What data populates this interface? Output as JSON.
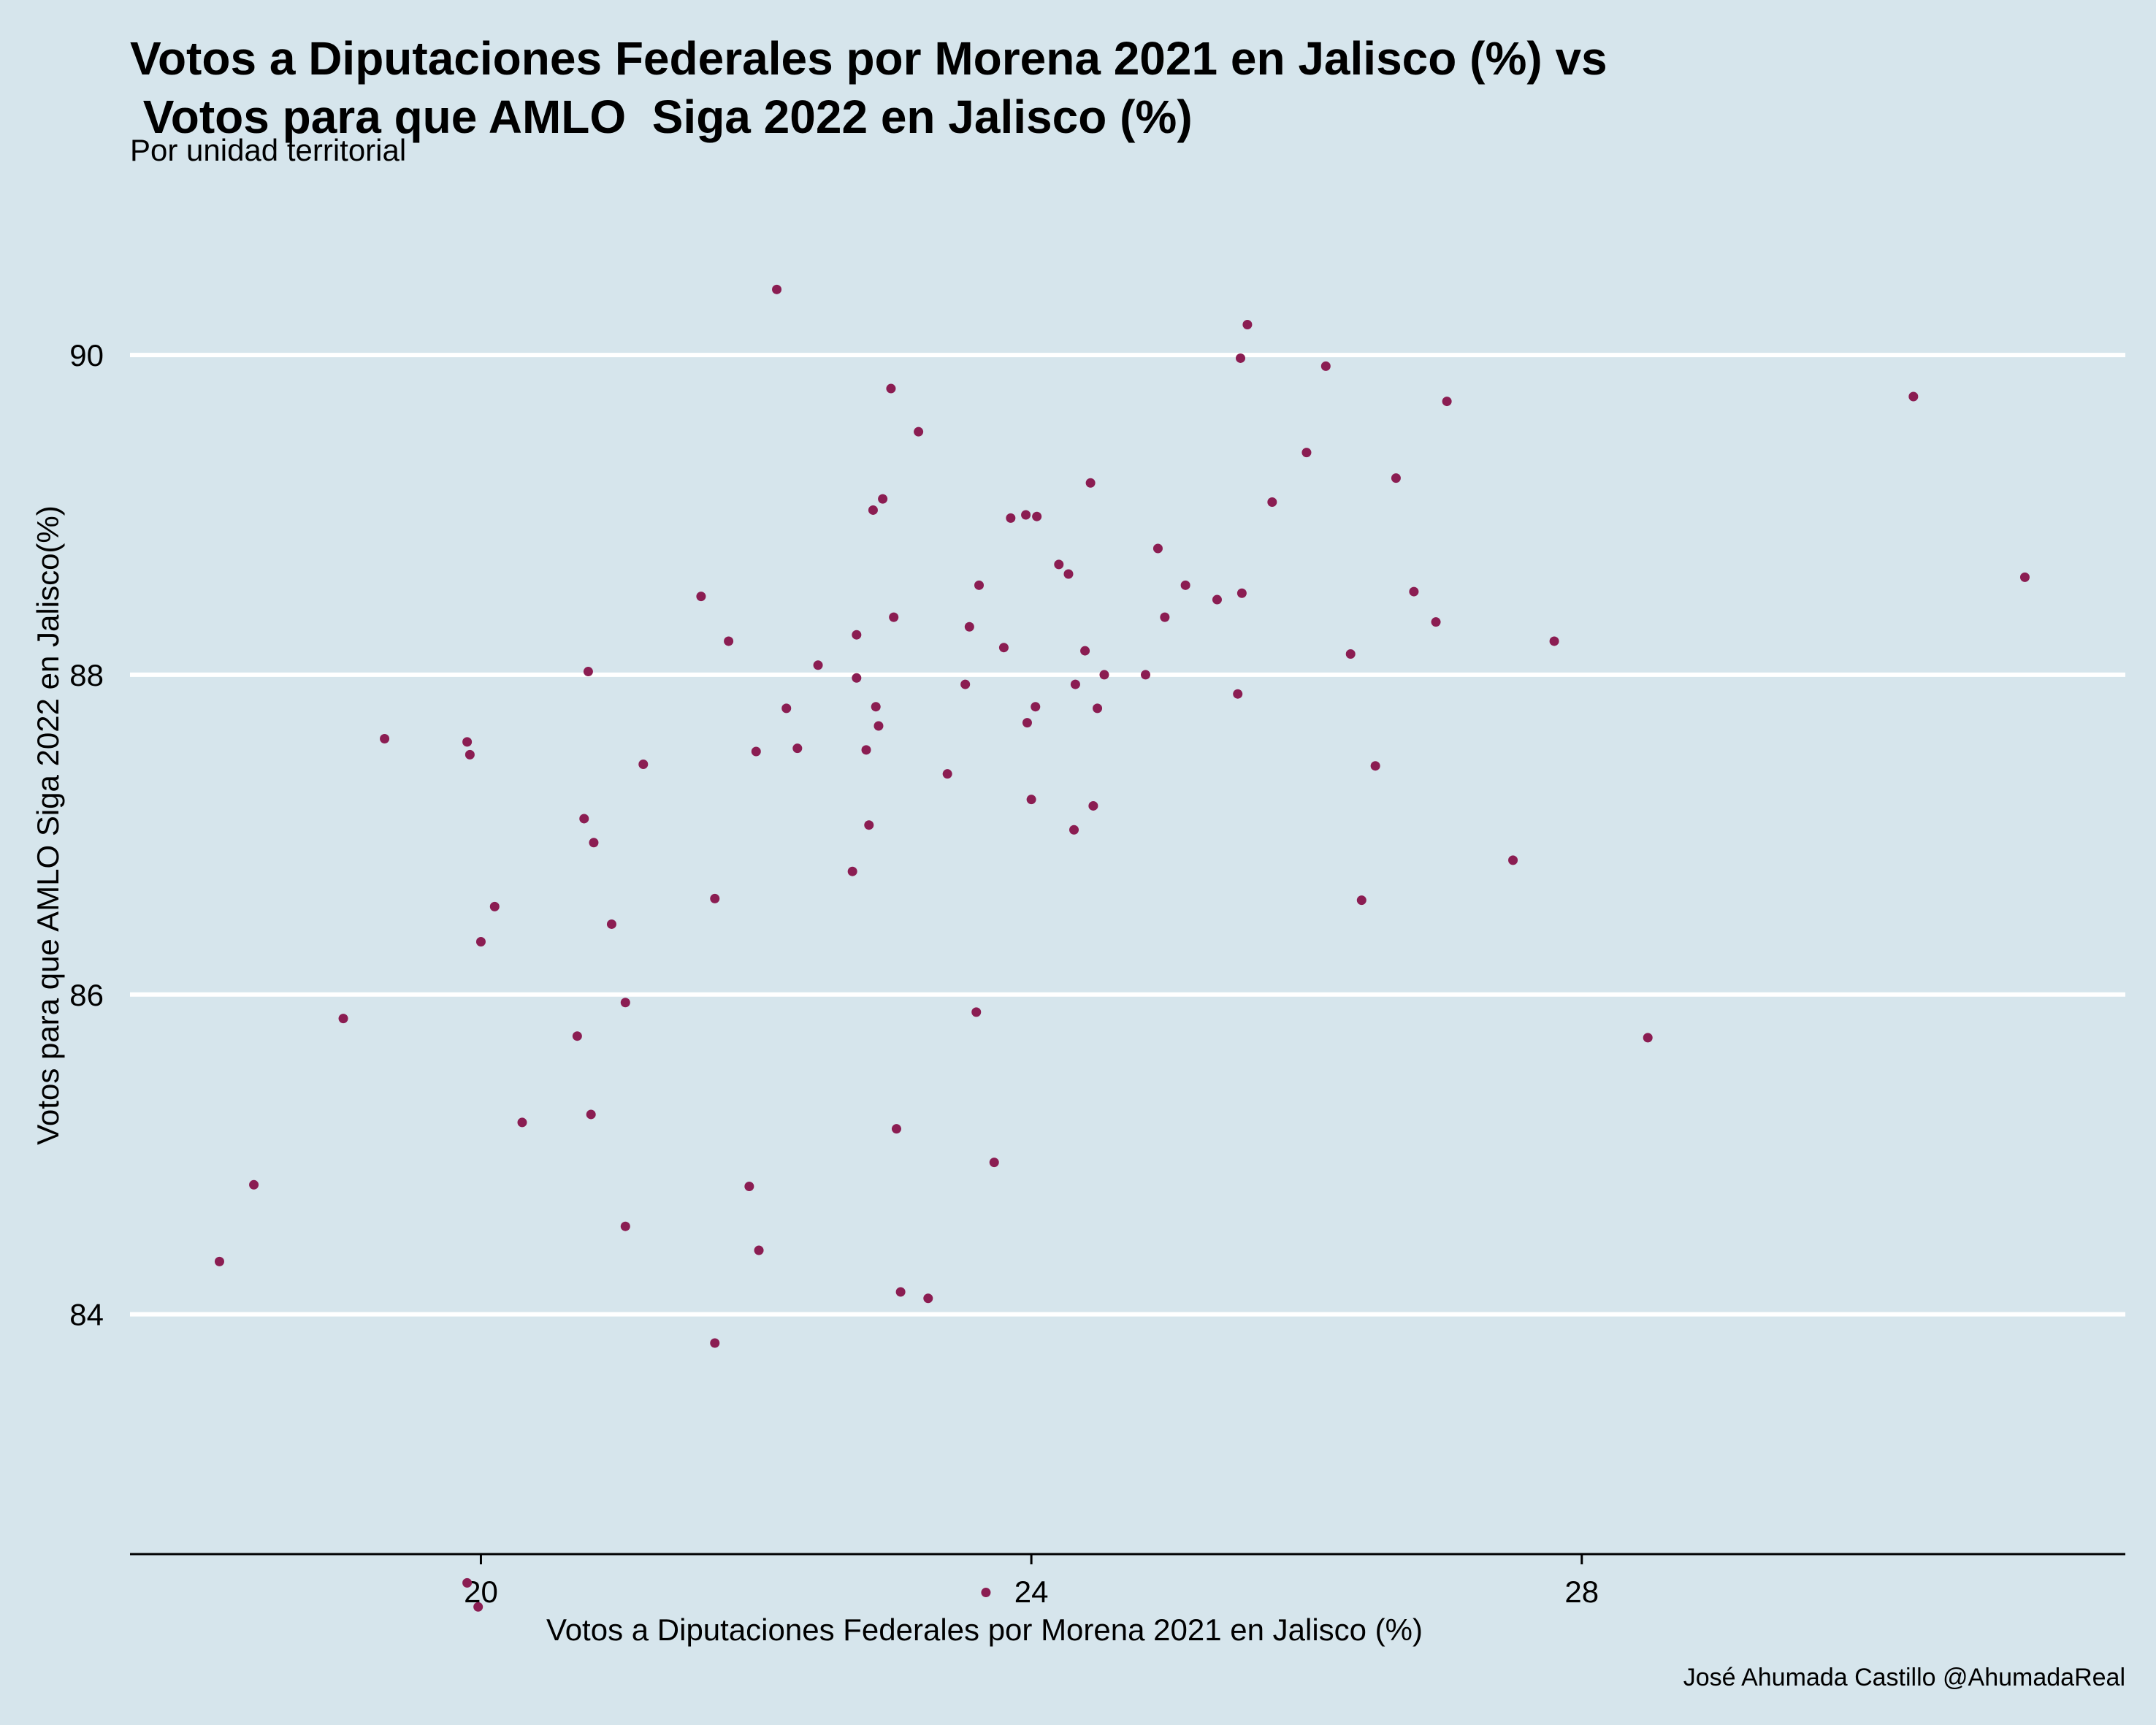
{
  "chart_data": {
    "type": "scatter",
    "title": "Votos a Diputaciones Federales por Morena 2021 en Jalisco (%) vs\n Votos para que AMLO  Siga 2022 en Jalisco (%)",
    "subtitle": "Por unidad territorial",
    "xlabel": "Votos a Diputaciones Federales por Morena 2021 en Jalisco (%)",
    "ylabel": "Votos para que AMLO Siga 2022 en Jalisco(%)",
    "caption": "José Ahumada Castillo @AhumadaReal",
    "xlim": [
      17.45,
      31.95
    ],
    "ylim": [
      82.5,
      90.85
    ],
    "xticks": [
      20,
      24,
      28
    ],
    "yticks": [
      84,
      86,
      88,
      90
    ],
    "grid": "horizontal major",
    "point_color": "#8b1d52",
    "points": [
      [
        18.1,
        84.33
      ],
      [
        18.35,
        84.81
      ],
      [
        19.0,
        85.85
      ],
      [
        19.3,
        87.6
      ],
      [
        19.9,
        87.58
      ],
      [
        19.92,
        87.5
      ],
      [
        19.9,
        82.32
      ],
      [
        19.98,
        82.17
      ],
      [
        20.0,
        86.33
      ],
      [
        20.1,
        86.55
      ],
      [
        20.3,
        85.2
      ],
      [
        20.7,
        85.74
      ],
      [
        20.75,
        87.1
      ],
      [
        20.78,
        88.02
      ],
      [
        20.8,
        85.25
      ],
      [
        20.82,
        86.95
      ],
      [
        20.95,
        86.44
      ],
      [
        21.05,
        85.95
      ],
      [
        21.05,
        84.55
      ],
      [
        21.18,
        87.44
      ],
      [
        21.6,
        88.49
      ],
      [
        21.7,
        86.6
      ],
      [
        21.7,
        83.82
      ],
      [
        21.8,
        88.21
      ],
      [
        21.95,
        84.8
      ],
      [
        22.0,
        87.52
      ],
      [
        22.02,
        84.4
      ],
      [
        22.15,
        90.41
      ],
      [
        22.22,
        87.79
      ],
      [
        22.3,
        87.54
      ],
      [
        22.45,
        88.06
      ],
      [
        22.7,
        86.77
      ],
      [
        22.73,
        87.98
      ],
      [
        22.73,
        88.25
      ],
      [
        22.8,
        87.53
      ],
      [
        22.82,
        87.06
      ],
      [
        22.85,
        89.03
      ],
      [
        22.87,
        87.8
      ],
      [
        22.89,
        87.68
      ],
      [
        22.92,
        89.1
      ],
      [
        22.98,
        89.79
      ],
      [
        23.0,
        88.36
      ],
      [
        23.02,
        85.16
      ],
      [
        23.05,
        84.14
      ],
      [
        23.18,
        89.52
      ],
      [
        23.25,
        84.1
      ],
      [
        23.39,
        87.38
      ],
      [
        23.52,
        87.94
      ],
      [
        23.55,
        88.3
      ],
      [
        23.6,
        85.89
      ],
      [
        23.62,
        88.56
      ],
      [
        23.67,
        82.26
      ],
      [
        23.73,
        84.95
      ],
      [
        23.8,
        88.17
      ],
      [
        23.85,
        88.98
      ],
      [
        23.96,
        89.0
      ],
      [
        23.97,
        87.7
      ],
      [
        24.0,
        87.22
      ],
      [
        24.03,
        87.8
      ],
      [
        24.04,
        88.99
      ],
      [
        24.2,
        88.69
      ],
      [
        24.27,
        88.63
      ],
      [
        24.31,
        87.03
      ],
      [
        24.32,
        87.94
      ],
      [
        24.39,
        88.15
      ],
      [
        24.43,
        89.2
      ],
      [
        24.45,
        87.18
      ],
      [
        24.48,
        87.79
      ],
      [
        24.53,
        88.0
      ],
      [
        24.83,
        88.0
      ],
      [
        24.92,
        88.79
      ],
      [
        24.97,
        88.36
      ],
      [
        25.12,
        88.56
      ],
      [
        25.35,
        88.47
      ],
      [
        25.5,
        87.88
      ],
      [
        25.52,
        89.98
      ],
      [
        25.53,
        88.51
      ],
      [
        25.57,
        90.19
      ],
      [
        25.75,
        89.08
      ],
      [
        26.0,
        89.39
      ],
      [
        26.14,
        89.93
      ],
      [
        26.32,
        88.13
      ],
      [
        26.4,
        86.59
      ],
      [
        26.5,
        87.43
      ],
      [
        26.65,
        89.23
      ],
      [
        26.78,
        88.52
      ],
      [
        26.94,
        88.33
      ],
      [
        27.02,
        89.71
      ],
      [
        27.5,
        86.84
      ],
      [
        27.8,
        88.21
      ],
      [
        28.48,
        85.73
      ],
      [
        30.41,
        89.74
      ],
      [
        31.22,
        88.61
      ]
    ]
  }
}
